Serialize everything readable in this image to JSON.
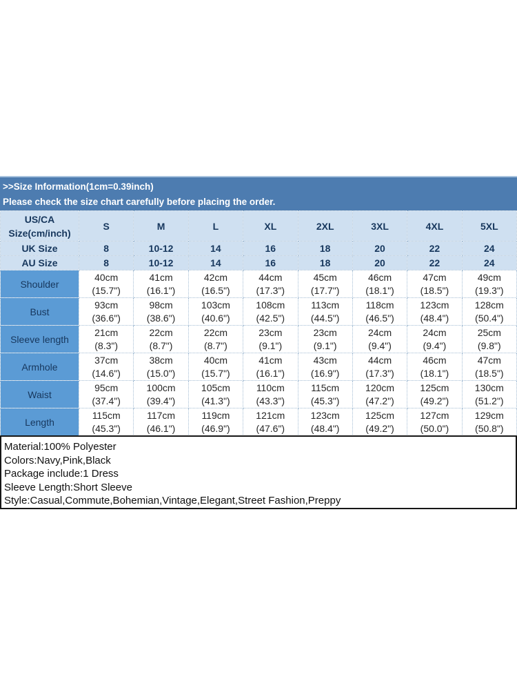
{
  "banner": {
    "title": ">>Size Information(1cm=0.39inch)",
    "subtitle": "Please check the size chart carefully before placing the order."
  },
  "size_table": {
    "corner": {
      "line1": "US/CA",
      "line2": "Size(cm/inch)"
    },
    "size_headers": [
      "S",
      "M",
      "L",
      "XL",
      "2XL",
      "3XL",
      "4XL",
      "5XL"
    ],
    "region_rows": [
      {
        "label": "UK Size",
        "values": [
          "8",
          "10-12",
          "14",
          "16",
          "18",
          "20",
          "22",
          "24"
        ]
      },
      {
        "label": "AU Size",
        "values": [
          "8",
          "10-12",
          "14",
          "16",
          "18",
          "20",
          "22",
          "24"
        ]
      }
    ],
    "measurement_rows": [
      {
        "label": "Shoulder",
        "cells": [
          {
            "cm": "40cm",
            "inch": "(15.7\")"
          },
          {
            "cm": "41cm",
            "inch": "(16.1\")"
          },
          {
            "cm": "42cm",
            "inch": "(16.5\")"
          },
          {
            "cm": "44cm",
            "inch": "(17.3\")"
          },
          {
            "cm": "45cm",
            "inch": "(17.7\")"
          },
          {
            "cm": "46cm",
            "inch": "(18.1\")"
          },
          {
            "cm": "47cm",
            "inch": "(18.5\")"
          },
          {
            "cm": "49cm",
            "inch": "(19.3\")"
          }
        ]
      },
      {
        "label": "Bust",
        "cells": [
          {
            "cm": "93cm",
            "inch": "(36.6\")"
          },
          {
            "cm": "98cm",
            "inch": "(38.6\")"
          },
          {
            "cm": "103cm",
            "inch": "(40.6\")"
          },
          {
            "cm": "108cm",
            "inch": "(42.5\")"
          },
          {
            "cm": "113cm",
            "inch": "(44.5\")"
          },
          {
            "cm": "118cm",
            "inch": "(46.5\")"
          },
          {
            "cm": "123cm",
            "inch": "(48.4\")"
          },
          {
            "cm": "128cm",
            "inch": "(50.4\")"
          }
        ]
      },
      {
        "label": "Sleeve length",
        "cells": [
          {
            "cm": "21cm",
            "inch": "(8.3\")"
          },
          {
            "cm": "22cm",
            "inch": "(8.7\")"
          },
          {
            "cm": "22cm",
            "inch": "(8.7\")"
          },
          {
            "cm": "23cm",
            "inch": "(9.1\")"
          },
          {
            "cm": "23cm",
            "inch": "(9.1\")"
          },
          {
            "cm": "24cm",
            "inch": "(9.4\")"
          },
          {
            "cm": "24cm",
            "inch": "(9.4\")"
          },
          {
            "cm": "25cm",
            "inch": "(9.8\")"
          }
        ]
      },
      {
        "label": "Armhole",
        "cells": [
          {
            "cm": "37cm",
            "inch": "(14.6\")"
          },
          {
            "cm": "38cm",
            "inch": "(15.0\")"
          },
          {
            "cm": "40cm",
            "inch": "(15.7\")"
          },
          {
            "cm": "41cm",
            "inch": "(16.1\")"
          },
          {
            "cm": "43cm",
            "inch": "(16.9\")"
          },
          {
            "cm": "44cm",
            "inch": "(17.3\")"
          },
          {
            "cm": "46cm",
            "inch": "(18.1\")"
          },
          {
            "cm": "47cm",
            "inch": "(18.5\")"
          }
        ]
      },
      {
        "label": "Waist",
        "cells": [
          {
            "cm": "95cm",
            "inch": "(37.4\")"
          },
          {
            "cm": "100cm",
            "inch": "(39.4\")"
          },
          {
            "cm": "105cm",
            "inch": "(41.3\")"
          },
          {
            "cm": "110cm",
            "inch": "(43.3\")"
          },
          {
            "cm": "115cm",
            "inch": "(45.3\")"
          },
          {
            "cm": "120cm",
            "inch": "(47.2\")"
          },
          {
            "cm": "125cm",
            "inch": "(49.2\")"
          },
          {
            "cm": "130cm",
            "inch": "(51.2\")"
          }
        ]
      },
      {
        "label": "Length",
        "cells": [
          {
            "cm": "115cm",
            "inch": "(45.3\")"
          },
          {
            "cm": "117cm",
            "inch": "(46.1\")"
          },
          {
            "cm": "119cm",
            "inch": "(46.9\")"
          },
          {
            "cm": "121cm",
            "inch": "(47.6\")"
          },
          {
            "cm": "123cm",
            "inch": "(48.4\")"
          },
          {
            "cm": "125cm",
            "inch": "(49.2\")"
          },
          {
            "cm": "127cm",
            "inch": "(50.0\")"
          },
          {
            "cm": "129cm",
            "inch": "(50.8\")"
          }
        ]
      }
    ]
  },
  "product_info": {
    "lines": [
      "Material:100% Polyester",
      "Colors:Navy,Pink,Black",
      "Package include:1 Dress",
      "Sleeve Length:Short Sleeve",
      "Style:Casual,Commute,Bohemian,Vintage,Elegant,Street Fashion,Preppy"
    ]
  },
  "colors": {
    "banner_bg": "#4d7cb0",
    "banner_edge": "#a9c4de",
    "header_bg": "#cfe0f1",
    "header_text": "#17375d",
    "label_bg": "#5b9bd5",
    "body_text": "#262626",
    "border": "#a3bcd3"
  }
}
